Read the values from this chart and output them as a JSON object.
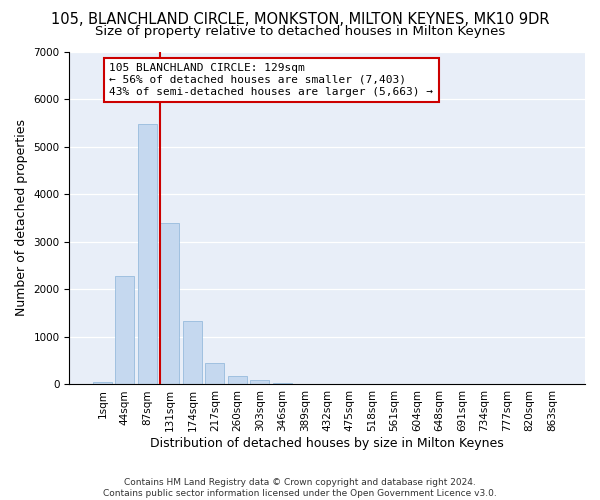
{
  "title": "105, BLANCHLAND CIRCLE, MONKSTON, MILTON KEYNES, MK10 9DR",
  "subtitle": "Size of property relative to detached houses in Milton Keynes",
  "xlabel": "Distribution of detached houses by size in Milton Keynes",
  "ylabel": "Number of detached properties",
  "footer_line1": "Contains HM Land Registry data © Crown copyright and database right 2024.",
  "footer_line2": "Contains public sector information licensed under the Open Government Licence v3.0.",
  "categories": [
    "1sqm",
    "44sqm",
    "87sqm",
    "131sqm",
    "174sqm",
    "217sqm",
    "260sqm",
    "303sqm",
    "346sqm",
    "389sqm",
    "432sqm",
    "475sqm",
    "518sqm",
    "561sqm",
    "604sqm",
    "648sqm",
    "691sqm",
    "734sqm",
    "777sqm",
    "820sqm",
    "863sqm"
  ],
  "values": [
    60,
    2280,
    5480,
    3400,
    1340,
    460,
    175,
    100,
    40,
    0,
    0,
    0,
    0,
    0,
    0,
    0,
    0,
    0,
    0,
    0,
    0
  ],
  "bar_color": "#c5d8ef",
  "bar_edge_color": "#8ab4d8",
  "annotation_text_line1": "105 BLANCHLAND CIRCLE: 129sqm",
  "annotation_text_line2": "← 56% of detached houses are smaller (7,403)",
  "annotation_text_line3": "43% of semi-detached houses are larger (5,663) →",
  "vline_color": "#cc0000",
  "annotation_box_edge_color": "#cc0000",
  "vline_x_index": 2.5,
  "ylim": [
    0,
    7000
  ],
  "yticks": [
    0,
    1000,
    2000,
    3000,
    4000,
    5000,
    6000,
    7000
  ],
  "fig_bg_color": "#ffffff",
  "plot_bg_color": "#e8eef8",
  "grid_color": "#ffffff",
  "title_fontsize": 10.5,
  "subtitle_fontsize": 9.5,
  "axis_label_fontsize": 9,
  "tick_fontsize": 7.5,
  "footer_fontsize": 6.5
}
